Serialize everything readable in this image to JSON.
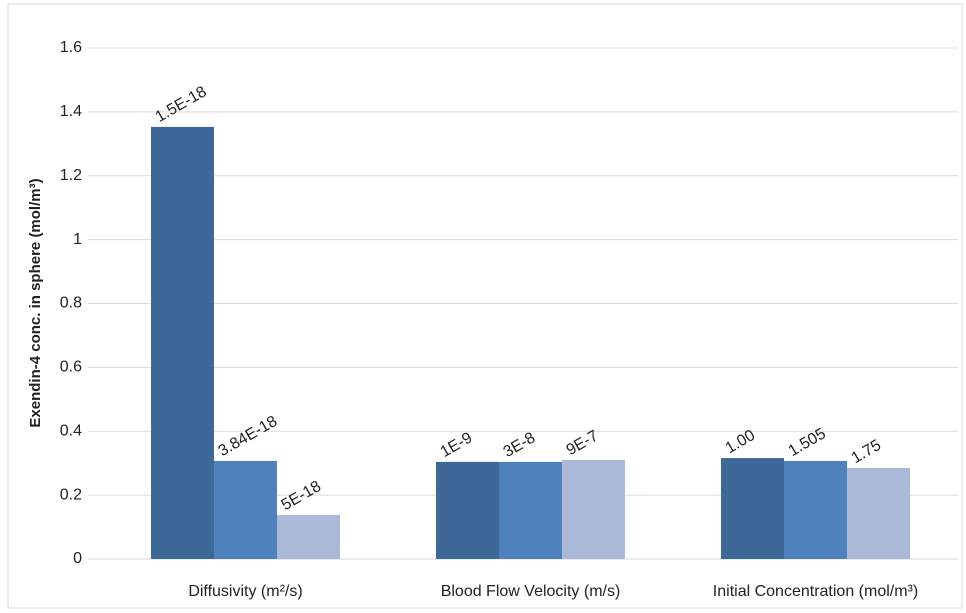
{
  "chart_data": {
    "type": "bar",
    "y_label": "Exendin-4 conc. in sphere (mol/m³)",
    "categories": [
      "Diffusivity (m²/s)",
      "Blood Flow Velocity (m/s)",
      "Initial Concentration (mol/m³)"
    ],
    "series": [
      {
        "color": "#3e6898",
        "values": [
          1.353,
          0.304,
          0.316
        ],
        "labels": [
          "1.5E-18",
          "1E-9",
          "1.00"
        ]
      },
      {
        "color": "#4f81bd",
        "values": [
          0.307,
          0.304,
          0.307
        ],
        "labels": [
          "3.84E-18",
          "3E-8",
          "1.505"
        ]
      },
      {
        "color": "#a9b9d7",
        "values": [
          0.138,
          0.31,
          0.285
        ],
        "labels": [
          "5E-18",
          "9E-7",
          "1.75"
        ]
      }
    ],
    "ylim": [
      0,
      1.6
    ],
    "yticks": [
      0,
      0.2,
      0.4,
      0.6,
      0.8,
      1,
      1.2,
      1.4,
      1.6
    ],
    "grid": true
  }
}
